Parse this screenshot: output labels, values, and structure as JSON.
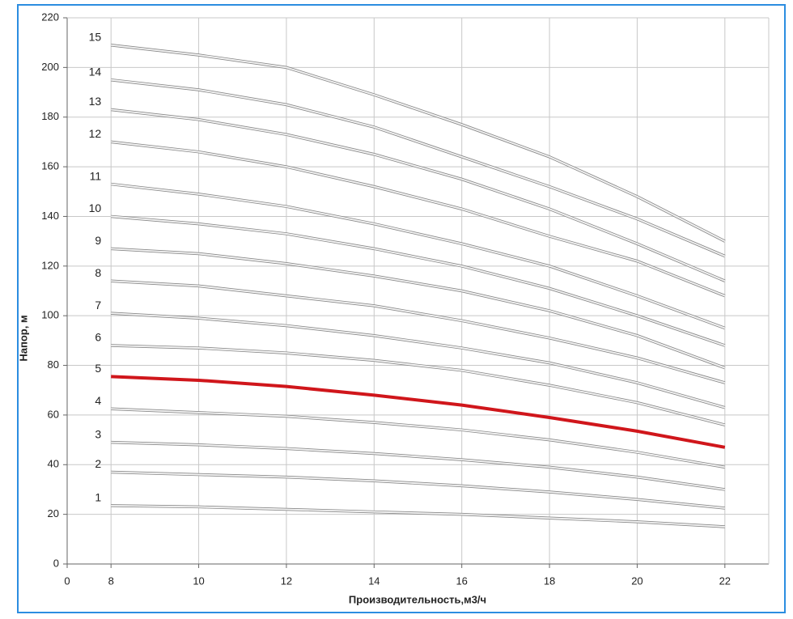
{
  "chart_data": {
    "type": "line",
    "x_label": "Производительность,м3/ч",
    "y_label": "Напор, м",
    "x": [
      8,
      10,
      12,
      14,
      16,
      18,
      20,
      22
    ],
    "xlim": [
      7,
      23
    ],
    "xticks": [
      {
        "value": 7,
        "label": "0"
      },
      8,
      10,
      12,
      14,
      16,
      18,
      20,
      22
    ],
    "ylim": [
      0,
      220
    ],
    "yticks": [
      0,
      20,
      40,
      60,
      80,
      100,
      120,
      140,
      160,
      180,
      200,
      220
    ],
    "grid": true,
    "series": [
      {
        "name": "1",
        "color": "#d9d9d9",
        "values": [
          23.5,
          23,
          22,
          21,
          20,
          18.5,
          17,
          15
        ]
      },
      {
        "name": "2",
        "color": "#d9d9d9",
        "values": [
          37,
          36,
          35,
          33.5,
          31.5,
          29,
          26,
          22.5
        ]
      },
      {
        "name": "3",
        "color": "#d9d9d9",
        "values": [
          49,
          48,
          46.5,
          44.5,
          42,
          39,
          35,
          30
        ]
      },
      {
        "name": "4",
        "color": "#d9d9d9",
        "values": [
          62.5,
          61,
          59.5,
          57,
          54,
          50,
          45,
          39
        ]
      },
      {
        "name": "5",
        "color": "#d0161b",
        "values": [
          75.5,
          74,
          71.5,
          68,
          64,
          59,
          53.5,
          47
        ]
      },
      {
        "name": "6",
        "color": "#d9d9d9",
        "values": [
          88,
          87,
          85,
          82,
          78,
          72,
          65,
          56
        ]
      },
      {
        "name": "7",
        "color": "#d9d9d9",
        "values": [
          101,
          99,
          96,
          92,
          87,
          81,
          73,
          63
        ]
      },
      {
        "name": "8",
        "color": "#d9d9d9",
        "values": [
          114,
          112,
          108,
          104,
          98,
          91,
          83,
          73
        ]
      },
      {
        "name": "9",
        "color": "#d9d9d9",
        "values": [
          127,
          125,
          121,
          116,
          110,
          102,
          92,
          79
        ]
      },
      {
        "name": "10",
        "color": "#d9d9d9",
        "values": [
          140,
          137,
          133,
          127,
          120,
          111,
          100,
          88
        ]
      },
      {
        "name": "11",
        "color": "#d9d9d9",
        "values": [
          153,
          149,
          144,
          137,
          129,
          120,
          108,
          95
        ]
      },
      {
        "name": "12",
        "color": "#d9d9d9",
        "values": [
          170,
          166,
          160,
          152,
          143,
          132,
          122,
          108
        ]
      },
      {
        "name": "13",
        "color": "#d9d9d9",
        "values": [
          183,
          179,
          173,
          165,
          155,
          143,
          129,
          114
        ]
      },
      {
        "name": "14",
        "color": "#d9d9d9",
        "values": [
          195,
          191,
          185,
          176,
          164,
          152,
          139,
          124
        ]
      },
      {
        "name": "15",
        "color": "#d9d9d9",
        "values": [
          209,
          205,
          200,
          189,
          177,
          164,
          148,
          130
        ]
      }
    ]
  }
}
